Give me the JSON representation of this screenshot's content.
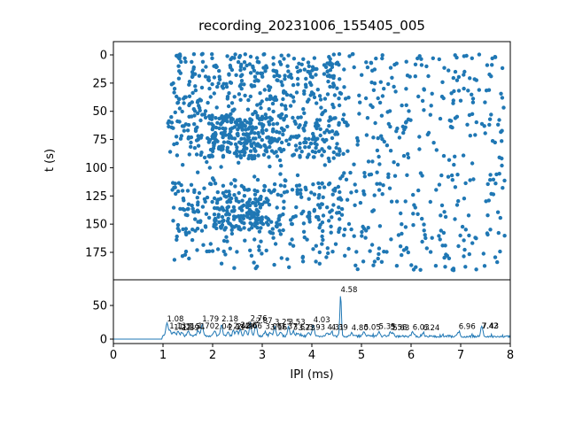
{
  "figure": {
    "title": "recording_20231006_155405_005",
    "background": "#ffffff",
    "accent_color": "#1f77b4",
    "render_seed": 20231006
  },
  "chart_data": [
    {
      "type": "scatter",
      "id": "ipi-raster",
      "title": "recording_20231006_155405_005",
      "xlabel": "",
      "ylabel": "t (s)",
      "xlim": [
        0,
        8
      ],
      "ylim": [
        199,
        -10
      ],
      "y_axis_inverted": true,
      "yticks": [
        0,
        25,
        50,
        75,
        100,
        125,
        150,
        175
      ],
      "grid": false,
      "legend": null,
      "point_color": "#1f77b4",
      "point_radius_px": 2.2,
      "clusters": [
        {
          "x": [
            1.15,
            7.9
          ],
          "t": [
            -1,
            4
          ],
          "n": 55
        },
        {
          "x": [
            1.3,
            4.6
          ],
          "t": [
            6,
            22
          ],
          "n": 120
        },
        {
          "x": [
            4.6,
            7.9
          ],
          "t": [
            6,
            22
          ],
          "n": 35
        },
        {
          "x": [
            1.15,
            4.6
          ],
          "t": [
            22,
            52
          ],
          "n": 160
        },
        {
          "x": [
            4.6,
            7.9
          ],
          "t": [
            22,
            52
          ],
          "n": 55
        },
        {
          "x": [
            1.1,
            4.6
          ],
          "t": [
            52,
            92
          ],
          "n": 300
        },
        {
          "x": [
            1.9,
            3.3
          ],
          "t": [
            55,
            90
          ],
          "n": 120
        },
        {
          "x": [
            4.6,
            7.9
          ],
          "t": [
            52,
            92
          ],
          "n": 80
        },
        {
          "x": [
            1.2,
            7.9
          ],
          "t": [
            93,
            101
          ],
          "n": 20
        },
        {
          "x": [
            1.4,
            7.9
          ],
          "t": [
            104,
            112
          ],
          "n": 40
        },
        {
          "x": [
            1.15,
            4.6
          ],
          "t": [
            113,
            158
          ],
          "n": 260
        },
        {
          "x": [
            2.0,
            3.2
          ],
          "t": [
            125,
            155
          ],
          "n": 90
        },
        {
          "x": [
            4.6,
            7.9
          ],
          "t": [
            113,
            158
          ],
          "n": 75
        },
        {
          "x": [
            1.2,
            7.9
          ],
          "t": [
            158,
            170
          ],
          "n": 55
        },
        {
          "x": [
            1.2,
            7.9
          ],
          "t": [
            171,
            182
          ],
          "n": 55
        },
        {
          "x": [
            1.3,
            7.9
          ],
          "t": [
            183,
            191
          ],
          "n": 30
        }
      ]
    },
    {
      "type": "line",
      "id": "ipi-count-profile",
      "xlabel": "IPI (ms)",
      "ylabel": "",
      "xlim": [
        0,
        8
      ],
      "ylim": [
        -6,
        88
      ],
      "xticks": [
        0,
        1,
        2,
        3,
        4,
        5,
        6,
        7,
        8
      ],
      "yticks": [
        0,
        50
      ],
      "grid": false,
      "legend": null,
      "line_color": "#1f77b4",
      "flat_zero_until_x": 1.0,
      "baseline_level": 4,
      "main_peak": {
        "x": 4.58,
        "value": 65,
        "label": "4.58"
      },
      "peak_annotations": [
        {
          "x": 1.08,
          "y": 26,
          "label": "1.08"
        },
        {
          "x": 1.13,
          "y": 16,
          "label": "1.13"
        },
        {
          "x": 1.22,
          "y": 14,
          "label": "1.22"
        },
        {
          "x": 1.31,
          "y": 15,
          "label": "1.31"
        },
        {
          "x": 1.39,
          "y": 13,
          "label": "1.39"
        },
        {
          "x": 1.51,
          "y": 15,
          "label": "1.51"
        },
        {
          "x": 1.7,
          "y": 16,
          "label": "1.70"
        },
        {
          "x": 1.79,
          "y": 26,
          "label": "1.79"
        },
        {
          "x": 2.04,
          "y": 15,
          "label": "2.04"
        },
        {
          "x": 2.18,
          "y": 26,
          "label": "2.18"
        },
        {
          "x": 2.31,
          "y": 14,
          "label": "2.31"
        },
        {
          "x": 2.42,
          "y": 16,
          "label": "2.42"
        },
        {
          "x": 2.49,
          "y": 15,
          "label": "2.49"
        },
        {
          "x": 2.56,
          "y": 17,
          "label": "2.56"
        },
        {
          "x": 2.66,
          "y": 16,
          "label": "2.66"
        },
        {
          "x": 2.76,
          "y": 27,
          "label": "2.76"
        },
        {
          "x": 2.87,
          "y": 24,
          "label": "2.87"
        },
        {
          "x": 3.06,
          "y": 15,
          "label": "3.06"
        },
        {
          "x": 3.16,
          "y": 14,
          "label": "3.16"
        },
        {
          "x": 3.25,
          "y": 22,
          "label": "3.25"
        },
        {
          "x": 3.37,
          "y": 15,
          "label": "3.37"
        },
        {
          "x": 3.53,
          "y": 22,
          "label": "3.53"
        },
        {
          "x": 3.62,
          "y": 14,
          "label": "3.62"
        },
        {
          "x": 3.73,
          "y": 13,
          "label": "3.73"
        },
        {
          "x": 3.93,
          "y": 14,
          "label": "3.93"
        },
        {
          "x": 4.03,
          "y": 25,
          "label": "4.03"
        },
        {
          "x": 4.31,
          "y": 14,
          "label": "4.31"
        },
        {
          "x": 4.39,
          "y": 14,
          "label": "4.39"
        },
        {
          "x": 4.58,
          "y": 70,
          "label": "4.58"
        },
        {
          "x": 4.8,
          "y": 13,
          "label": "4.80"
        },
        {
          "x": 5.05,
          "y": 14,
          "label": "5.05"
        },
        {
          "x": 5.35,
          "y": 15,
          "label": "5.35"
        },
        {
          "x": 5.58,
          "y": 14,
          "label": "5.58"
        },
        {
          "x": 5.63,
          "y": 13,
          "label": "5.63"
        },
        {
          "x": 6.03,
          "y": 14,
          "label": "6.03"
        },
        {
          "x": 6.24,
          "y": 13,
          "label": "6.24"
        },
        {
          "x": 6.96,
          "y": 15,
          "label": "6.96"
        },
        {
          "x": 7.42,
          "y": 16,
          "label": "7.42"
        },
        {
          "x": 7.43,
          "y": 16,
          "label": "7.43"
        }
      ]
    }
  ]
}
